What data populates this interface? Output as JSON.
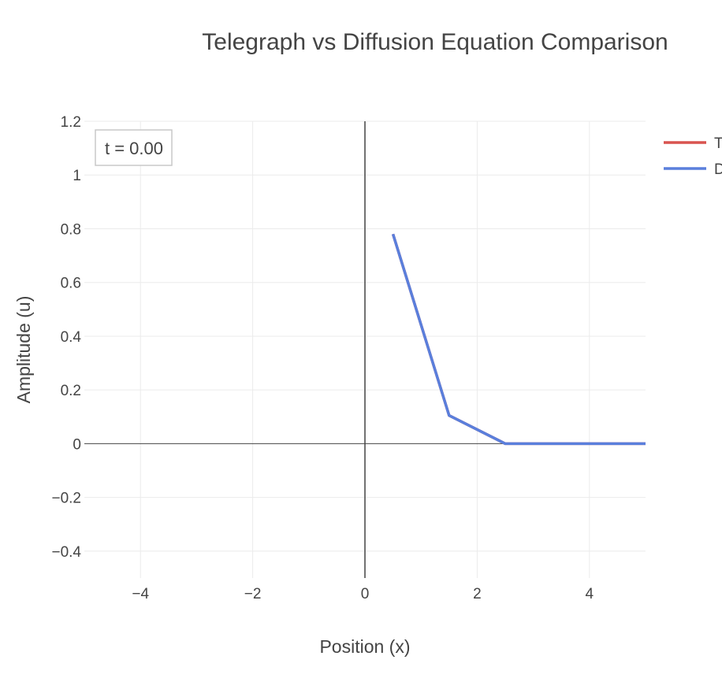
{
  "chart_data": {
    "type": "line",
    "title": "Telegraph vs Diffusion Equation Comparison",
    "xlabel": "Position (x)",
    "ylabel": "Amplitude (u)",
    "xlim": [
      -5,
      5
    ],
    "ylim": [
      -0.5,
      1.2
    ],
    "x_ticks": [
      -4,
      -2,
      0,
      2,
      4
    ],
    "x_tick_labels": [
      "−4",
      "−2",
      "0",
      "2",
      "4"
    ],
    "y_ticks": [
      -0.4,
      -0.2,
      0,
      0.2,
      0.4,
      0.6,
      0.8,
      1,
      1.2
    ],
    "y_tick_labels": [
      "−0.4",
      "−0.2",
      "0",
      "0.2",
      "0.4",
      "0.6",
      "0.8",
      "1",
      "1.2"
    ],
    "grid": true,
    "legend_position": "top-right (clipped at right edge)",
    "annotation": "t = 0.00",
    "series": [
      {
        "name": "T",
        "color": "#d9534f",
        "x": [
          0.5,
          1.5,
          2.5,
          3.5,
          4.5,
          5.0
        ],
        "y": [
          0.78,
          0.105,
          0.0,
          0.0,
          0.0,
          0.0
        ]
      },
      {
        "name": "D",
        "color": "#5a7fdc",
        "x": [
          0.5,
          1.5,
          2.5,
          3.5,
          4.5,
          5.0
        ],
        "y": [
          0.78,
          0.105,
          0.0,
          0.0,
          0.0,
          0.0
        ]
      }
    ]
  }
}
